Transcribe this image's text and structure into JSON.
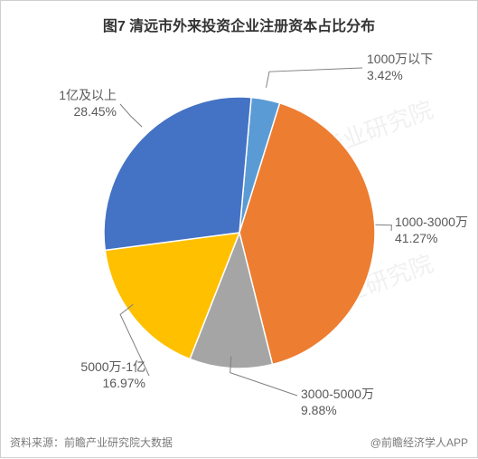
{
  "chart": {
    "type": "pie",
    "title": "图7 清远市外来投资企业注册资本占比分布",
    "title_fontsize": 16,
    "title_color": "#333333",
    "background_color": "#ffffff",
    "border_color": "#d0d0d0",
    "radius": 150,
    "start_angle_deg": -85,
    "slices": [
      {
        "name": "1000万以下",
        "value": 3.42,
        "color": "#5b9bd5",
        "label_line1": "1000万以下",
        "label_line2": "3.42%"
      },
      {
        "name": "1000-3000万",
        "value": 41.27,
        "color": "#ed7d31",
        "label_line1": "1000-3000万",
        "label_line2": "41.27%"
      },
      {
        "name": "3000-5000万",
        "value": 9.88,
        "color": "#a5a5a5",
        "label_line1": "3000-5000万",
        "label_line2": "9.88%"
      },
      {
        "name": "5000万-1亿",
        "value": 16.97,
        "color": "#ffc000",
        "label_line1": "5000万-1亿",
        "label_line2": "16.97%"
      },
      {
        "name": "1亿及以上",
        "value": 28.45,
        "color": "#4472c4",
        "label_line1": "1亿及以上",
        "label_line2": "28.45%"
      }
    ],
    "label_fontsize": 14,
    "label_color": "#595959",
    "leader_color": "#808080",
    "slice_stroke_color": "#ffffff",
    "slice_stroke_width": 1.5
  },
  "footer": {
    "left": "资料来源：前瞻产业研究院大数据",
    "right": "@前瞻经济学人APP",
    "fontsize": 12,
    "color": "#7a7a7a"
  },
  "watermark": {
    "text": "前瞻产业研究院",
    "color_rgba": "rgba(0,0,0,0.06)",
    "fontsize": 26,
    "rotate_deg": -20
  }
}
